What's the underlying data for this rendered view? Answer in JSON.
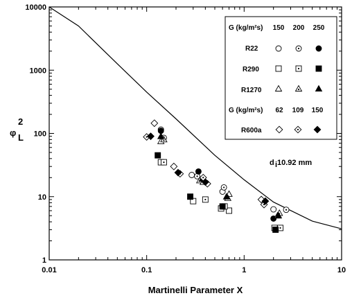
{
  "chart_data": {
    "type": "scatter",
    "xlabel": "Martinelli Parameter X",
    "ylabel": "φ_L²",
    "ylabel_main": "φ",
    "ylabel_sub": "L",
    "ylabel_sup": "2",
    "xscale": "log",
    "yscale": "log",
    "xlim": [
      0.01,
      10
    ],
    "ylim": [
      1,
      10000
    ],
    "x_ticks": [
      "0.01",
      "0.1",
      "1",
      "10"
    ],
    "y_ticks": [
      "1",
      "10",
      "100",
      "1000",
      "10000"
    ],
    "annotation": "d",
    "annotation_sub": "i",
    "annotation_rest": " 10.92 mm",
    "legend": {
      "position": "top-right",
      "header1": {
        "label": "G (kg/m²s)",
        "values": [
          "150",
          "200",
          "250"
        ]
      },
      "header2": {
        "label": "G (kg/m²s)",
        "values": [
          "62",
          "109",
          "150"
        ]
      },
      "rows": [
        {
          "name": "R22",
          "markers": [
            "circle",
            "circle-dot",
            "circle-filled"
          ]
        },
        {
          "name": "R290",
          "markers": [
            "square",
            "square-dot",
            "square-filled"
          ]
        },
        {
          "name": "R1270",
          "markers": [
            "triangle",
            "triangle-dot",
            "triangle-filled"
          ]
        },
        {
          "name": "R600a",
          "markers": [
            "diamond",
            "diamond-dot",
            "diamond-filled"
          ]
        }
      ]
    },
    "curve": {
      "name": "correlation",
      "points": [
        [
          0.01,
          10000
        ],
        [
          0.02,
          5000
        ],
        [
          0.05,
          1260
        ],
        [
          0.1,
          450
        ],
        [
          0.2,
          170
        ],
        [
          0.5,
          45
        ],
        [
          1,
          18.5
        ],
        [
          2,
          8.2
        ],
        [
          5,
          4.1
        ],
        [
          10,
          3.1
        ]
      ]
    },
    "series": [
      {
        "refrigerant": "R22",
        "G": "150",
        "marker": "circle",
        "points": [
          [
            0.14,
            115
          ],
          [
            0.29,
            22
          ],
          [
            0.6,
            12
          ],
          [
            2.0,
            6.3
          ]
        ]
      },
      {
        "refrigerant": "R22",
        "G": "200",
        "marker": "circle-dot",
        "points": [
          [
            0.15,
            85
          ],
          [
            0.33,
            21
          ],
          [
            0.62,
            14
          ],
          [
            2.7,
            6.2
          ]
        ]
      },
      {
        "refrigerant": "R22",
        "G": "250",
        "marker": "circle-filled",
        "points": [
          [
            0.14,
            110
          ],
          [
            0.34,
            25
          ],
          [
            0.6,
            7
          ],
          [
            2.0,
            4.5
          ]
        ]
      },
      {
        "refrigerant": "R290",
        "G": "150",
        "marker": "square",
        "points": [
          [
            0.14,
            35
          ],
          [
            0.3,
            8.5
          ],
          [
            0.58,
            6.5
          ],
          [
            0.7,
            6
          ],
          [
            2.05,
            3.2
          ]
        ]
      },
      {
        "refrigerant": "R290",
        "G": "200",
        "marker": "square-dot",
        "points": [
          [
            0.15,
            35
          ],
          [
            0.4,
            9
          ],
          [
            0.63,
            7
          ],
          [
            2.35,
            3.2
          ]
        ]
      },
      {
        "refrigerant": "R290",
        "G": "250",
        "marker": "square-filled",
        "points": [
          [
            0.13,
            45
          ],
          [
            0.28,
            10
          ],
          [
            0.6,
            7
          ],
          [
            2.1,
            3.0
          ]
        ]
      },
      {
        "refrigerant": "R1270",
        "G": "150",
        "marker": "triangle",
        "points": [
          [
            0.14,
            75
          ],
          [
            0.35,
            18
          ],
          [
            0.7,
            11
          ],
          [
            2.2,
            5
          ]
        ]
      },
      {
        "refrigerant": "R1270",
        "G": "200",
        "marker": "triangle-dot",
        "points": [
          [
            0.15,
            80
          ],
          [
            0.38,
            17
          ],
          [
            0.68,
            9.5
          ],
          [
            2.3,
            5.5
          ]
        ]
      },
      {
        "refrigerant": "R1270",
        "G": "250",
        "marker": "triangle-filled",
        "points": [
          [
            0.14,
            90
          ],
          [
            0.37,
            19
          ],
          [
            0.66,
            10
          ],
          [
            2.25,
            5
          ]
        ]
      },
      {
        "refrigerant": "R600a",
        "G": "62",
        "marker": "diamond",
        "points": [
          [
            0.12,
            145
          ],
          [
            0.19,
            30
          ],
          [
            0.42,
            16
          ],
          [
            1.5,
            9
          ]
        ]
      },
      {
        "refrigerant": "R600a",
        "G": "109",
        "marker": "diamond-dot",
        "points": [
          [
            0.1,
            88
          ],
          [
            0.22,
            23
          ],
          [
            0.38,
            20
          ],
          [
            1.6,
            7.5
          ]
        ]
      },
      {
        "refrigerant": "R600a",
        "G": "150",
        "marker": "diamond-filled",
        "points": [
          [
            0.11,
            90
          ],
          [
            0.21,
            24
          ],
          [
            0.4,
            17
          ],
          [
            1.65,
            8.5
          ]
        ]
      }
    ]
  }
}
